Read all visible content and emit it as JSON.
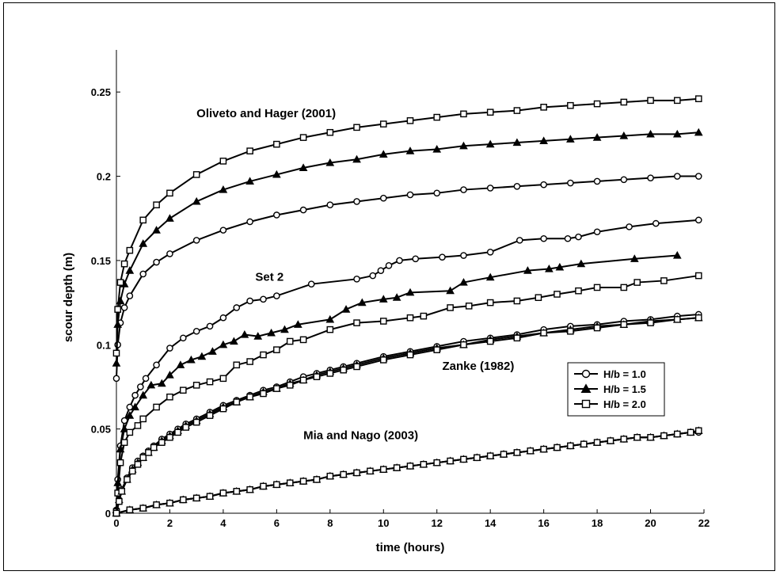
{
  "chart_data": {
    "type": "line",
    "xlabel": "time (hours)",
    "ylabel": "scour depth (m)",
    "xlim": [
      0,
      22
    ],
    "ylim": [
      0,
      0.275
    ],
    "xticks": [
      0,
      2,
      4,
      6,
      8,
      10,
      12,
      14,
      16,
      18,
      20,
      22
    ],
    "yticks": [
      0,
      0.05,
      0.1,
      0.15,
      0.2,
      0.25
    ],
    "xtick_labels": [
      "0",
      "2",
      "4",
      "6",
      "8",
      "10",
      "12",
      "14",
      "16",
      "18",
      "20",
      "22"
    ],
    "ytick_labels": [
      "0",
      "0.05",
      "0.1",
      "0.15",
      "0.2",
      "0.25"
    ],
    "grid": false,
    "legend_position": "lower-right",
    "legend": [
      {
        "label": "H/b = 1.0",
        "marker": "circle"
      },
      {
        "label": "H/b = 1.5",
        "marker": "triangle"
      },
      {
        "label": "H/b = 2.0",
        "marker": "square"
      }
    ],
    "annotations": [
      {
        "text": "Oliveto and Hager (2001)"
      },
      {
        "text": "Set 2"
      },
      {
        "text": "Zanke (1982)"
      },
      {
        "text": "Mia and Nago (2003)"
      }
    ],
    "series": [
      {
        "group": "Oliveto and Hager (2001)",
        "marker": "circle",
        "x": [
          0,
          0.05,
          0.15,
          0.3,
          0.5,
          1,
          1.5,
          2,
          3,
          4,
          5,
          6,
          7,
          8,
          9,
          10,
          11,
          12,
          13,
          14,
          15,
          16,
          17,
          18,
          19,
          20,
          21,
          21.8
        ],
        "y": [
          0.08,
          0.1,
          0.113,
          0.122,
          0.129,
          0.142,
          0.149,
          0.154,
          0.162,
          0.168,
          0.173,
          0.177,
          0.18,
          0.183,
          0.185,
          0.187,
          0.189,
          0.19,
          0.192,
          0.193,
          0.194,
          0.195,
          0.196,
          0.197,
          0.198,
          0.199,
          0.2,
          0.2
        ]
      },
      {
        "group": "Oliveto and Hager (2001)",
        "marker": "triangle",
        "x": [
          0,
          0.05,
          0.15,
          0.3,
          0.5,
          1,
          1.5,
          2,
          3,
          4,
          5,
          6,
          7,
          8,
          9,
          10,
          11,
          12,
          13,
          14,
          15,
          16,
          17,
          18,
          19,
          20,
          21,
          21.8
        ],
        "y": [
          0.089,
          0.112,
          0.126,
          0.136,
          0.144,
          0.16,
          0.168,
          0.175,
          0.185,
          0.192,
          0.197,
          0.201,
          0.205,
          0.208,
          0.21,
          0.213,
          0.215,
          0.216,
          0.218,
          0.219,
          0.22,
          0.221,
          0.222,
          0.223,
          0.224,
          0.225,
          0.225,
          0.226
        ]
      },
      {
        "group": "Oliveto and Hager (2001)",
        "marker": "square",
        "x": [
          0,
          0.05,
          0.15,
          0.3,
          0.5,
          1,
          1.5,
          2,
          3,
          4,
          5,
          6,
          7,
          8,
          9,
          10,
          11,
          12,
          13,
          14,
          15,
          16,
          17,
          18,
          19,
          20,
          21,
          21.8
        ],
        "y": [
          0.095,
          0.121,
          0.137,
          0.148,
          0.156,
          0.174,
          0.183,
          0.19,
          0.201,
          0.209,
          0.215,
          0.219,
          0.223,
          0.226,
          0.229,
          0.231,
          0.233,
          0.235,
          0.237,
          0.238,
          0.239,
          0.241,
          0.242,
          0.243,
          0.244,
          0.245,
          0.245,
          0.246
        ]
      },
      {
        "group": "Set 2",
        "marker": "circle",
        "x": [
          0,
          0.05,
          0.15,
          0.3,
          0.5,
          0.7,
          0.9,
          1.1,
          1.5,
          2,
          2.5,
          3,
          3.5,
          4,
          4.5,
          5,
          5.5,
          6,
          7.3,
          9,
          9.6,
          9.9,
          10.2,
          10.6,
          11.2,
          12.2,
          13,
          14,
          15.1,
          16,
          16.9,
          17.3,
          18,
          19.2,
          20.2,
          21.8
        ],
        "y": [
          0.002,
          0.02,
          0.04,
          0.055,
          0.063,
          0.07,
          0.075,
          0.08,
          0.088,
          0.098,
          0.104,
          0.108,
          0.111,
          0.116,
          0.122,
          0.126,
          0.127,
          0.129,
          0.136,
          0.139,
          0.141,
          0.144,
          0.147,
          0.15,
          0.151,
          0.152,
          0.153,
          0.155,
          0.162,
          0.163,
          0.163,
          0.164,
          0.167,
          0.17,
          0.172,
          0.174
        ]
      },
      {
        "group": "Set 2",
        "marker": "triangle",
        "x": [
          0,
          0.05,
          0.15,
          0.3,
          0.5,
          0.7,
          1,
          1.3,
          1.7,
          2,
          2.4,
          2.8,
          3.2,
          3.6,
          4,
          4.4,
          4.8,
          5.3,
          5.8,
          6.3,
          6.8,
          8,
          8.6,
          9.2,
          10,
          10.5,
          11,
          12.5,
          13,
          14,
          15.4,
          16.2,
          16.6,
          17.4,
          19.4,
          21
        ],
        "y": [
          0.002,
          0.018,
          0.038,
          0.05,
          0.058,
          0.063,
          0.07,
          0.076,
          0.077,
          0.082,
          0.088,
          0.091,
          0.093,
          0.096,
          0.1,
          0.102,
          0.106,
          0.105,
          0.107,
          0.109,
          0.112,
          0.115,
          0.121,
          0.125,
          0.127,
          0.128,
          0.131,
          0.132,
          0.137,
          0.14,
          0.144,
          0.145,
          0.146,
          0.148,
          0.151,
          0.153
        ]
      },
      {
        "group": "Set 2",
        "marker": "square",
        "x": [
          0,
          0.05,
          0.15,
          0.3,
          0.5,
          0.8,
          1,
          1.5,
          2,
          2.5,
          3,
          3.5,
          4,
          4.5,
          5,
          5.5,
          6,
          6.5,
          7,
          8,
          9,
          10,
          11,
          11.5,
          12.5,
          13.2,
          14,
          15,
          15.8,
          16.5,
          17.3,
          18,
          19,
          19.5,
          20.5,
          21.8
        ],
        "y": [
          0.001,
          0.012,
          0.03,
          0.042,
          0.048,
          0.052,
          0.056,
          0.063,
          0.069,
          0.073,
          0.076,
          0.078,
          0.08,
          0.088,
          0.09,
          0.094,
          0.097,
          0.102,
          0.103,
          0.109,
          0.113,
          0.114,
          0.116,
          0.117,
          0.122,
          0.123,
          0.125,
          0.126,
          0.128,
          0.13,
          0.132,
          0.134,
          0.134,
          0.137,
          0.138,
          0.141
        ]
      },
      {
        "group": "Zanke (1982)",
        "marker": "circle",
        "x": [
          0,
          0.1,
          0.2,
          0.4,
          0.6,
          0.8,
          1,
          1.2,
          1.4,
          1.7,
          2,
          2.3,
          2.6,
          3,
          3.5,
          4,
          4.5,
          5,
          5.5,
          6,
          6.5,
          7,
          7.5,
          8,
          8.5,
          9,
          10,
          11,
          12,
          13,
          14,
          15,
          16,
          17,
          18,
          19,
          20,
          21,
          21.8
        ],
        "y": [
          0,
          0.008,
          0.014,
          0.021,
          0.027,
          0.031,
          0.034,
          0.037,
          0.04,
          0.044,
          0.047,
          0.05,
          0.053,
          0.056,
          0.06,
          0.064,
          0.067,
          0.07,
          0.073,
          0.075,
          0.078,
          0.081,
          0.083,
          0.085,
          0.087,
          0.089,
          0.093,
          0.096,
          0.099,
          0.102,
          0.104,
          0.106,
          0.109,
          0.111,
          0.112,
          0.114,
          0.115,
          0.117,
          0.118
        ]
      },
      {
        "group": "Zanke (1982)",
        "marker": "triangle",
        "x": [
          0,
          0.1,
          0.2,
          0.4,
          0.6,
          0.8,
          1,
          1.2,
          1.4,
          1.7,
          2,
          2.3,
          2.6,
          3,
          3.5,
          4,
          4.5,
          5,
          5.5,
          6,
          6.5,
          7,
          7.5,
          8,
          8.5,
          9,
          10,
          11,
          12,
          13,
          14,
          15,
          16,
          17,
          18,
          19,
          20,
          21,
          21.8
        ],
        "y": [
          0,
          0.008,
          0.013,
          0.02,
          0.026,
          0.03,
          0.033,
          0.036,
          0.039,
          0.043,
          0.046,
          0.049,
          0.052,
          0.055,
          0.059,
          0.063,
          0.066,
          0.069,
          0.072,
          0.074,
          0.077,
          0.079,
          0.082,
          0.084,
          0.086,
          0.088,
          0.092,
          0.095,
          0.098,
          0.1,
          0.103,
          0.105,
          0.107,
          0.109,
          0.111,
          0.112,
          0.114,
          0.115,
          0.116
        ]
      },
      {
        "group": "Zanke (1982)",
        "marker": "square",
        "x": [
          0,
          0.1,
          0.2,
          0.4,
          0.6,
          0.8,
          1,
          1.2,
          1.4,
          1.7,
          2,
          2.3,
          2.6,
          3,
          3.5,
          4,
          4.5,
          5,
          5.5,
          6,
          6.5,
          7,
          7.5,
          8,
          8.5,
          9,
          10,
          11,
          12,
          13,
          14,
          15,
          16,
          17,
          18,
          19,
          20,
          21,
          21.8
        ],
        "y": [
          0,
          0.007,
          0.013,
          0.02,
          0.025,
          0.029,
          0.033,
          0.036,
          0.039,
          0.042,
          0.045,
          0.048,
          0.051,
          0.054,
          0.058,
          0.062,
          0.066,
          0.069,
          0.071,
          0.074,
          0.076,
          0.079,
          0.081,
          0.083,
          0.085,
          0.087,
          0.091,
          0.094,
          0.097,
          0.1,
          0.102,
          0.104,
          0.107,
          0.108,
          0.11,
          0.112,
          0.113,
          0.115,
          0.116
        ]
      },
      {
        "group": "Mia and Nago (2003)",
        "marker": "circle",
        "x": [
          0,
          0.5,
          1,
          1.5,
          2,
          2.5,
          3,
          3.5,
          4,
          4.5,
          5,
          5.5,
          6,
          6.5,
          7,
          7.5,
          8,
          8.5,
          9,
          9.5,
          10,
          10.5,
          11,
          11.5,
          12,
          12.5,
          13,
          13.5,
          14,
          14.5,
          15,
          15.5,
          16,
          16.5,
          17,
          17.5,
          18,
          18.5,
          19,
          19.5,
          20,
          20.5,
          21,
          21.5,
          21.8
        ],
        "y": [
          0,
          0.002,
          0.003,
          0.005,
          0.006,
          0.008,
          0.009,
          0.01,
          0.012,
          0.013,
          0.014,
          0.016,
          0.017,
          0.018,
          0.019,
          0.02,
          0.022,
          0.023,
          0.024,
          0.025,
          0.026,
          0.027,
          0.028,
          0.029,
          0.03,
          0.031,
          0.032,
          0.033,
          0.034,
          0.035,
          0.036,
          0.037,
          0.038,
          0.039,
          0.04,
          0.041,
          0.042,
          0.043,
          0.044,
          0.045,
          0.045,
          0.046,
          0.047,
          0.048,
          0.048
        ]
      },
      {
        "group": "Mia and Nago (2003)",
        "marker": "triangle",
        "x": [
          0,
          0.5,
          1,
          1.5,
          2,
          2.5,
          3,
          3.5,
          4,
          4.5,
          5,
          5.5,
          6,
          6.5,
          7,
          7.5,
          8,
          8.5,
          9,
          9.5,
          10,
          10.5,
          11,
          11.5,
          12,
          12.5,
          13,
          13.5,
          14,
          14.5,
          15,
          15.5,
          16,
          16.5,
          17,
          17.5,
          18,
          18.5,
          19,
          19.5,
          20,
          20.5,
          21,
          21.5,
          21.8
        ],
        "y": [
          0,
          0.002,
          0.003,
          0.005,
          0.006,
          0.008,
          0.009,
          0.01,
          0.012,
          0.013,
          0.014,
          0.016,
          0.017,
          0.018,
          0.019,
          0.02,
          0.022,
          0.023,
          0.024,
          0.025,
          0.026,
          0.027,
          0.028,
          0.029,
          0.03,
          0.031,
          0.032,
          0.033,
          0.034,
          0.035,
          0.036,
          0.037,
          0.038,
          0.039,
          0.04,
          0.041,
          0.042,
          0.043,
          0.044,
          0.045,
          0.045,
          0.046,
          0.047,
          0.048,
          0.049
        ]
      },
      {
        "group": "Mia and Nago (2003)",
        "marker": "square",
        "x": [
          0,
          0.5,
          1,
          1.5,
          2,
          2.5,
          3,
          3.5,
          4,
          4.5,
          5,
          5.5,
          6,
          6.5,
          7,
          7.5,
          8,
          8.5,
          9,
          9.5,
          10,
          10.5,
          11,
          11.5,
          12,
          12.5,
          13,
          13.5,
          14,
          14.5,
          15,
          15.5,
          16,
          16.5,
          17,
          17.5,
          18,
          18.5,
          19,
          19.5,
          20,
          20.5,
          21,
          21.5,
          21.8
        ],
        "y": [
          0,
          0.002,
          0.003,
          0.005,
          0.006,
          0.008,
          0.009,
          0.01,
          0.012,
          0.013,
          0.014,
          0.016,
          0.017,
          0.018,
          0.019,
          0.02,
          0.022,
          0.023,
          0.024,
          0.025,
          0.026,
          0.027,
          0.028,
          0.029,
          0.03,
          0.031,
          0.032,
          0.033,
          0.034,
          0.035,
          0.036,
          0.037,
          0.038,
          0.039,
          0.04,
          0.041,
          0.042,
          0.043,
          0.044,
          0.045,
          0.045,
          0.046,
          0.047,
          0.048,
          0.049
        ]
      }
    ]
  }
}
